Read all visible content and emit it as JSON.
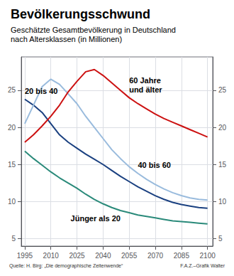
{
  "chart_data": {
    "type": "line",
    "title": "Bevölkerungsschwund",
    "subtitle": "Geschätzte Gesamtbevölkerung in Deutschland\nnach Altersklassen (in Millionen)",
    "source": "Quelle: H. Birg: „Die demographische Zeitenwende“",
    "credit": "F.A.Z.–Grafik Walter",
    "x": [
      1995,
      2000,
      2005,
      2010,
      2015,
      2020,
      2025,
      2030,
      2035,
      2040,
      2045,
      2050,
      2055,
      2060,
      2065,
      2070,
      2075,
      2080,
      2085,
      2090,
      2095,
      2100
    ],
    "series": [
      {
        "name": "20 bis 40",
        "color": "#1a4080",
        "values": [
          23.8,
          23.0,
          22.0,
          20.5,
          19.0,
          18.0,
          17.2,
          16.4,
          15.7,
          15.0,
          14.2,
          13.4,
          12.7,
          12.0,
          11.4,
          10.8,
          10.3,
          9.9,
          9.6,
          9.4,
          9.2,
          9.1
        ]
      },
      {
        "name": "40 bis 60",
        "color": "#99bbdd",
        "values": [
          20.5,
          23.0,
          25.5,
          26.5,
          25.8,
          24.5,
          23.2,
          21.5,
          20.0,
          18.5,
          17.0,
          15.8,
          14.7,
          13.8,
          13.0,
          12.3,
          11.7,
          11.2,
          10.8,
          10.5,
          10.3,
          10.2
        ]
      },
      {
        "name": "60 Jahre\nund älter",
        "color": "#cc1111",
        "values": [
          18.0,
          19.0,
          20.2,
          21.5,
          23.0,
          24.8,
          26.2,
          27.5,
          27.8,
          27.0,
          26.0,
          25.0,
          24.0,
          23.2,
          22.5,
          21.8,
          21.2,
          20.7,
          20.2,
          19.7,
          19.2,
          18.7
        ]
      },
      {
        "name": "Jünger als 20",
        "color": "#2a8a7a",
        "values": [
          16.8,
          15.8,
          14.9,
          14.0,
          13.2,
          12.5,
          11.8,
          11.0,
          10.3,
          9.7,
          9.2,
          8.8,
          8.5,
          8.2,
          8.0,
          7.8,
          7.6,
          7.4,
          7.3,
          7.2,
          7.1,
          7.0
        ]
      }
    ],
    "xlim": [
      1993,
      2103
    ],
    "xticks": [
      1995,
      2010,
      2025,
      2040,
      2055,
      2070,
      2085,
      2100
    ],
    "ylim": [
      4.0,
      29.5
    ],
    "yticks": [
      5,
      10,
      15,
      20,
      25
    ],
    "grid": true
  }
}
